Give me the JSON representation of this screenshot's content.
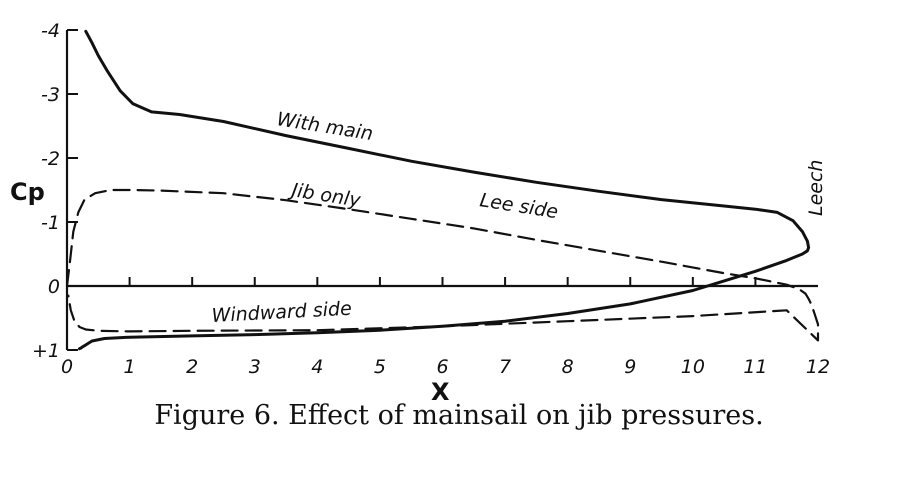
{
  "chart_data": {
    "type": "line",
    "title": "",
    "xlabel": "X",
    "ylabel": "Cp",
    "xlim": [
      0,
      12
    ],
    "ylim": [
      -4,
      1
    ],
    "y_inverted": true,
    "grid": false,
    "xticks": [
      0,
      1,
      2,
      3,
      4,
      5,
      6,
      7,
      8,
      9,
      10,
      11,
      12
    ],
    "xtick_labels": [
      "0",
      "1",
      "2",
      "3",
      "4",
      "5",
      "6",
      "7",
      "8",
      "9",
      "10",
      "11",
      "12"
    ],
    "yticks": [
      -4,
      -3,
      -2,
      -1,
      0,
      1
    ],
    "ytick_labels": [
      "-4",
      "-3",
      "-2",
      "-1",
      "0",
      "+1"
    ],
    "series": [
      {
        "name": "With main",
        "style": "solid",
        "color": "#111111",
        "x": [
          0.3,
          0.4,
          0.5,
          0.65,
          0.85,
          1.05,
          1.35,
          1.8,
          2.5,
          3.5,
          4.5,
          5.5,
          6.5,
          7.5,
          8.5,
          9.5,
          10.5,
          11.0,
          11.35,
          11.6,
          11.75,
          11.83,
          11.85,
          11.83,
          11.75,
          11.5,
          11.0,
          10.5,
          10.0,
          9.0,
          8.0,
          7.0,
          6.0,
          5.0,
          4.0,
          3.0,
          2.0,
          1.0,
          0.6,
          0.4,
          0.3,
          0.25,
          0.22,
          0.2
        ],
        "y": [
          -3.98,
          -3.8,
          -3.6,
          -3.35,
          -3.05,
          -2.85,
          -2.72,
          -2.68,
          -2.57,
          -2.35,
          -2.15,
          -1.95,
          -1.78,
          -1.62,
          -1.48,
          -1.35,
          -1.25,
          -1.2,
          -1.15,
          -1.02,
          -0.85,
          -0.7,
          -0.6,
          -0.55,
          -0.5,
          -0.4,
          -0.23,
          -0.08,
          0.07,
          0.28,
          0.43,
          0.55,
          0.63,
          0.69,
          0.73,
          0.76,
          0.78,
          0.8,
          0.82,
          0.86,
          0.92,
          0.95,
          0.97,
          0.98
        ]
      },
      {
        "name": "Jib only",
        "style": "dashed",
        "color": "#111111",
        "x": [
          0.0,
          0.05,
          0.1,
          0.18,
          0.28,
          0.45,
          0.7,
          1.0,
          1.5,
          2.5,
          3.5,
          4.5,
          5.5,
          6.5,
          7.5,
          8.5,
          9.5,
          10.5,
          11.0,
          11.5,
          11.7,
          11.8,
          11.85,
          11.9,
          11.95,
          12.0,
          12.0,
          11.5,
          10.0,
          8.0,
          6.0,
          4.0,
          2.0,
          1.0,
          0.5,
          0.3,
          0.2,
          0.12,
          0.06,
          0.02
        ],
        "y": [
          0.0,
          -0.4,
          -0.85,
          -1.15,
          -1.35,
          -1.45,
          -1.5,
          -1.5,
          -1.49,
          -1.45,
          -1.34,
          -1.2,
          -1.05,
          -0.9,
          -0.72,
          -0.55,
          -0.38,
          -0.2,
          -0.12,
          -0.02,
          0.05,
          0.12,
          0.2,
          0.3,
          0.45,
          0.6,
          0.85,
          0.38,
          0.47,
          0.55,
          0.63,
          0.69,
          0.7,
          0.71,
          0.7,
          0.68,
          0.64,
          0.55,
          0.38,
          0.15
        ]
      }
    ],
    "annotations": [
      "With main",
      "Jib only",
      "Lee side",
      "Windward side",
      "Leech"
    ]
  },
  "caption": "Figure 6.  Effect of mainsail on jib pressures."
}
